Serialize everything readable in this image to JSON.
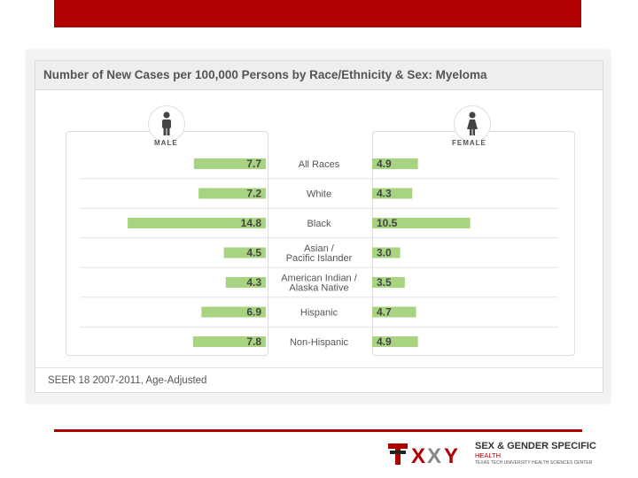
{
  "chart_data": {
    "type": "bar",
    "title": "Number of New Cases per 100,000 Persons by Race/Ethnicity & Sex: Myeloma",
    "categories": [
      [
        "All Races"
      ],
      [
        "White"
      ],
      [
        "Black"
      ],
      [
        "Asian /",
        "Pacific Islander"
      ],
      [
        "American Indian /",
        "Alaska Native"
      ],
      [
        "Hispanic"
      ],
      [
        "Non-Hispanic"
      ]
    ],
    "series": [
      {
        "name": "MALE",
        "values": [
          7.7,
          7.2,
          14.8,
          4.5,
          4.3,
          6.9,
          7.8
        ]
      },
      {
        "name": "FEMALE",
        "values": [
          4.9,
          4.3,
          10.5,
          3.0,
          3.5,
          4.7,
          4.9
        ]
      }
    ],
    "value_labels": {
      "male": [
        "7.7",
        "7.2",
        "14.8",
        "4.5",
        "4.3",
        "6.9",
        "7.8"
      ],
      "female": [
        "4.9",
        "4.3",
        "10.5",
        "3.0",
        "3.5",
        "4.7",
        "4.9"
      ]
    },
    "xlim": [
      0,
      15
    ],
    "bar_color": "#a8d482",
    "source_note": "SEER 18 2007-2011, Age-Adjusted"
  },
  "gender_labels": {
    "male": "MALE",
    "female": "FEMALE"
  },
  "colors": {
    "accent": "#b00000",
    "bar": "#a8d482"
  },
  "logo": {
    "line1": "SEX & GENDER SPECIFIC",
    "line2": "HEALTH",
    "line3": "TEXAS TECH UNIVERSITY HEALTH SCIENCES CENTER"
  }
}
